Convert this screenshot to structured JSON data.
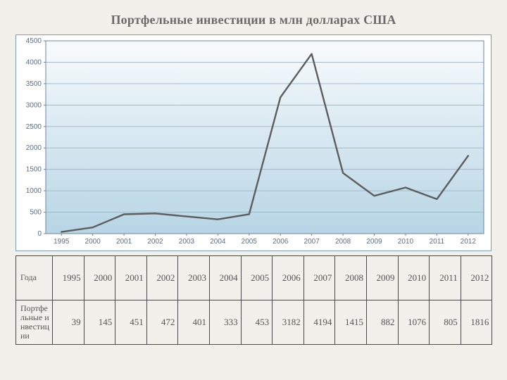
{
  "title": "Портфельные инвестиции в млн долларах США",
  "chart": {
    "type": "line",
    "background_top": "#f8fbfd",
    "background_bottom": "#b7d5e5",
    "border_color": "#7f9db9",
    "grid_color": "#a7b9c6",
    "axis_color": "#6f83a0",
    "tick_font_color": "#5b6b86",
    "tick_font_size": 10,
    "line_color": "#5d5d5d",
    "line_width": 2.4,
    "ylim": [
      0,
      4500
    ],
    "ytick_step": 500,
    "yticks": [
      0,
      500,
      1000,
      1500,
      2000,
      2500,
      3000,
      3500,
      4000,
      4500
    ],
    "categories": [
      "1995",
      "2000",
      "2001",
      "2002",
      "2003",
      "2004",
      "2005",
      "2006",
      "2007",
      "2008",
      "2009",
      "2010",
      "2011",
      "2012"
    ],
    "values": [
      39,
      145,
      451,
      472,
      401,
      333,
      453,
      3182,
      4194,
      1415,
      882,
      1076,
      805,
      1816
    ]
  },
  "table": {
    "row_labels": [
      "Года",
      "Портфельные инвестиции"
    ],
    "columns": [
      "1995",
      "2000",
      "2001",
      "2002",
      "2003",
      "2004",
      "2005",
      "2006",
      "2007",
      "2008",
      "2009",
      "2010",
      "2011",
      "2012"
    ],
    "rows": [
      [
        "1995",
        "2000",
        "2001",
        "2002",
        "2003",
        "2004",
        "2005",
        "2006",
        "2007",
        "2008",
        "2009",
        "2010",
        "2011",
        "2012"
      ],
      [
        "39",
        "145",
        "451",
        "472",
        "401",
        "333",
        "453",
        "3182",
        "4194",
        "1415",
        "882",
        "1076",
        "805",
        "1816"
      ]
    ]
  }
}
